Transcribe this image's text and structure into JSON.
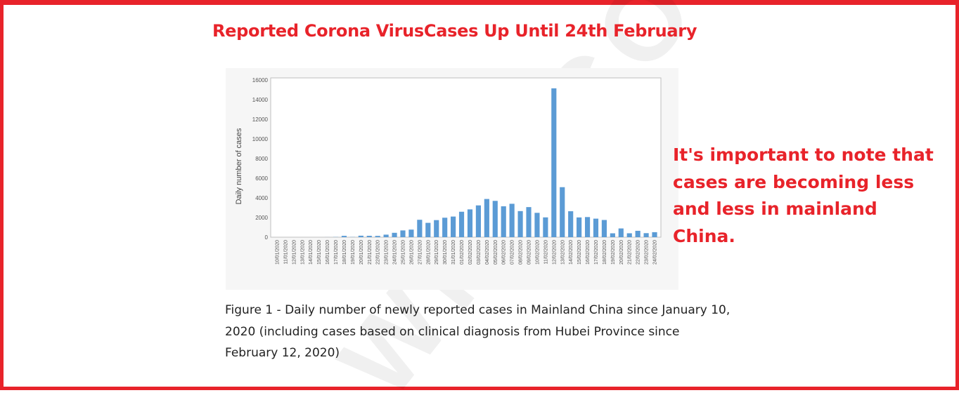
{
  "headline": "Reported Corona VirusCases Up Until 24th February",
  "side_note": "It's important to note that cases are becoming less and less in mainland China.",
  "caption": "Figure 1 - Daily number of newly reported cases in Mainland China since January 10, 2020 (including cases based on clinical diagnosis from Hubei Province since February 12, 2020)",
  "colors": {
    "accent": "#e8232a",
    "bar": "#5b9bd5",
    "panel": "#f6f6f6"
  },
  "chart_data": {
    "type": "bar",
    "title": "",
    "xlabel": "",
    "ylabel": "Daily number of cases",
    "ylim": [
      0,
      16000
    ],
    "yticks": [
      0,
      2000,
      4000,
      6000,
      8000,
      10000,
      12000,
      14000,
      16000
    ],
    "grid": false,
    "legend": "none",
    "categories": [
      "10/01/2020",
      "11/01/2020",
      "12/01/2020",
      "13/01/2020",
      "14/01/2020",
      "15/01/2020",
      "16/01/2020",
      "17/01/2020",
      "18/01/2020",
      "19/01/2020",
      "20/01/2020",
      "21/01/2020",
      "22/01/2020",
      "23/01/2020",
      "24/01/2020",
      "25/01/2020",
      "26/01/2020",
      "27/01/2020",
      "28/01/2020",
      "29/01/2020",
      "30/01/2020",
      "31/01/2020",
      "01/02/2020",
      "02/02/2020",
      "03/02/2020",
      "04/02/2020",
      "05/02/2020",
      "06/02/2020",
      "07/02/2020",
      "08/02/2020",
      "09/02/2020",
      "10/02/2020",
      "11/02/2020",
      "12/02/2020",
      "13/02/2020",
      "14/02/2020",
      "15/02/2020",
      "16/02/2020",
      "17/02/2020",
      "18/02/2020",
      "19/02/2020",
      "20/02/2020",
      "21/02/2020",
      "22/02/2020",
      "23/02/2020",
      "24/02/2020"
    ],
    "values": [
      0,
      0,
      0,
      0,
      0,
      0,
      4,
      17,
      136,
      19,
      151,
      140,
      131,
      257,
      444,
      688,
      769,
      1771,
      1459,
      1737,
      1981,
      2099,
      2590,
      2829,
      3235,
      3887,
      3694,
      3143,
      3399,
      2656,
      3062,
      2478,
      2015,
      15152,
      5090,
      2641,
      2009,
      2048,
      1886,
      1749,
      394,
      889,
      397,
      648,
      409,
      508
    ]
  }
}
